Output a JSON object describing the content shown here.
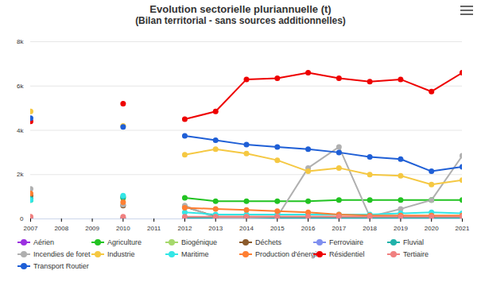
{
  "chart_data": {
    "type": "line",
    "title": "Evolution sectorielle pluriannuelle (t)",
    "subtitle": "(Bilan territorial - sans sources additionnelles)",
    "x": [
      2007,
      2008,
      2009,
      2010,
      2011,
      2012,
      2013,
      2014,
      2015,
      2016,
      2017,
      2018,
      2019,
      2020,
      2021
    ],
    "xlim": [
      2007,
      2021
    ],
    "xticks": [
      2007,
      2008,
      2009,
      2010,
      2011,
      2012,
      2013,
      2014,
      2015,
      2016,
      2017,
      2018,
      2019,
      2020,
      2021
    ],
    "ylim": [
      0,
      8000
    ],
    "yticks": [
      {
        "value": 0,
        "label": "0"
      },
      {
        "value": 2000,
        "label": "2k"
      },
      {
        "value": 4000,
        "label": "4k"
      },
      {
        "value": 6000,
        "label": "6k"
      },
      {
        "value": 8000,
        "label": "8k"
      }
    ],
    "grid": true,
    "marker": "circle",
    "legend": "bottom",
    "series": [
      {
        "name": "Aérien",
        "color": "#9b30e0",
        "values": [
          20,
          null,
          null,
          20,
          null,
          20,
          20,
          20,
          20,
          20,
          20,
          20,
          20,
          20,
          20
        ]
      },
      {
        "name": "Agriculture",
        "color": "#22c322",
        "values": [
          850,
          null,
          null,
          950,
          null,
          950,
          800,
          800,
          800,
          800,
          850,
          850,
          850,
          850,
          850
        ]
      },
      {
        "name": "Biogénique",
        "color": "#a6d86c",
        "values": [
          30,
          null,
          null,
          30,
          null,
          30,
          30,
          30,
          30,
          30,
          30,
          30,
          30,
          30,
          30
        ]
      },
      {
        "name": "Déchets",
        "color": "#8b5a2b",
        "values": [
          1050,
          null,
          null,
          600,
          null,
          550,
          100,
          100,
          100,
          100,
          100,
          100,
          100,
          100,
          100
        ]
      },
      {
        "name": "Ferroviaire",
        "color": "#7f8fef",
        "values": [
          10,
          null,
          null,
          10,
          null,
          10,
          10,
          10,
          10,
          10,
          10,
          10,
          10,
          10,
          10
        ]
      },
      {
        "name": "Fluvial",
        "color": "#20b2aa",
        "values": [
          900,
          null,
          null,
          1000,
          null,
          50,
          50,
          50,
          50,
          50,
          50,
          50,
          50,
          50,
          50
        ]
      },
      {
        "name": "Incendies de foret",
        "color": "#b0b0b0",
        "values": [
          1350,
          null,
          null,
          650,
          null,
          600,
          50,
          50,
          100,
          2300,
          3250,
          100,
          450,
          850,
          2850
        ]
      },
      {
        "name": "Industrie",
        "color": "#f5c842",
        "values": [
          4850,
          null,
          null,
          4200,
          null,
          2900,
          3150,
          2950,
          2650,
          2150,
          2300,
          2000,
          1950,
          1550,
          1750
        ]
      },
      {
        "name": "Maritime",
        "color": "#33e6e6",
        "values": [
          850,
          null,
          null,
          1050,
          null,
          300,
          200,
          200,
          200,
          200,
          200,
          200,
          250,
          300,
          250
        ]
      },
      {
        "name": "Production d'énergie",
        "color": "#ff7f32",
        "values": [
          1150,
          null,
          null,
          750,
          null,
          500,
          450,
          400,
          350,
          300,
          200,
          150,
          150,
          150,
          150
        ]
      },
      {
        "name": "Résidentiel",
        "color": "#ee0000",
        "values": [
          4400,
          null,
          null,
          5200,
          null,
          4500,
          4850,
          6300,
          6350,
          6600,
          6350,
          6200,
          6300,
          5750,
          6600
        ]
      },
      {
        "name": "Tertiaire",
        "color": "#f08080",
        "values": [
          100,
          null,
          null,
          100,
          null,
          100,
          100,
          100,
          100,
          100,
          100,
          100,
          100,
          100,
          100
        ]
      },
      {
        "name": "Transport Routier",
        "color": "#1f5fd6",
        "values": [
          4550,
          null,
          null,
          4150,
          null,
          3750,
          3550,
          3350,
          3250,
          3150,
          3000,
          2800,
          2700,
          2150,
          2350
        ]
      }
    ]
  }
}
